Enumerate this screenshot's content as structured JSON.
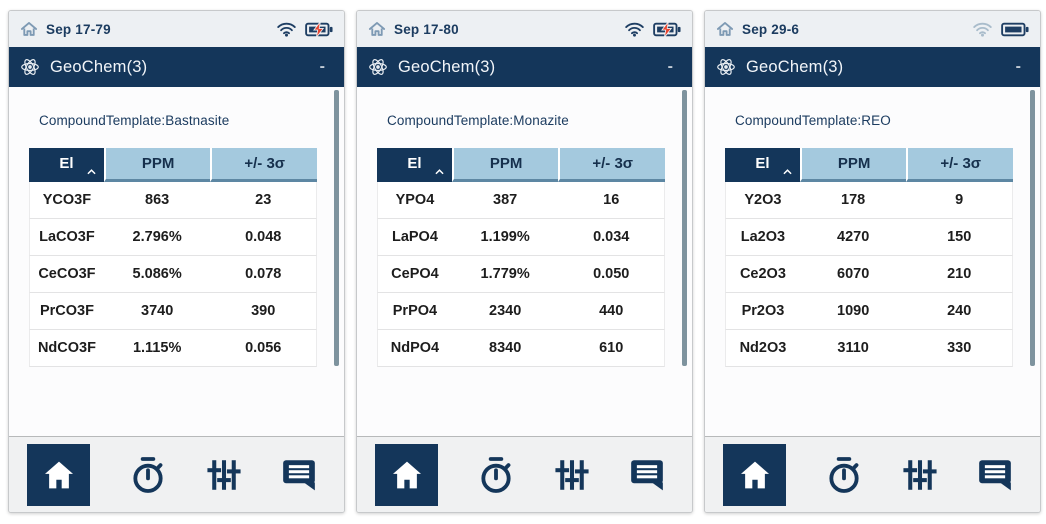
{
  "app": {
    "title": "GeoChem(3)",
    "minimize_label": "-"
  },
  "table_headers": {
    "el": "El",
    "ppm": "PPM",
    "sigma": "+/- 3σ"
  },
  "colors": {
    "header_navy": "#14365a",
    "table_header_blue": "#a4c9de",
    "charging_bolt_red": "#e8432e",
    "wifi_active": "#1e3e63",
    "wifi_faded": "#a9bccb"
  },
  "panels": [
    {
      "status": {
        "date": "Sep 17-79",
        "charging": true,
        "wifi_color": "#1e3e63"
      },
      "template_label": "CompoundTemplate:Bastnasite",
      "rows": [
        [
          "YCO3F",
          "863",
          "23"
        ],
        [
          "LaCO3F",
          "2.796%",
          "0.048"
        ],
        [
          "CeCO3F",
          "5.086%",
          "0.078"
        ],
        [
          "PrCO3F",
          "3740",
          "390"
        ],
        [
          "NdCO3F",
          "1.115%",
          "0.056"
        ]
      ]
    },
    {
      "status": {
        "date": "Sep 17-80",
        "charging": true,
        "wifi_color": "#1e3e63"
      },
      "template_label": "CompoundTemplate:Monazite",
      "rows": [
        [
          "YPO4",
          "387",
          "16"
        ],
        [
          "LaPO4",
          "1.199%",
          "0.034"
        ],
        [
          "CePO4",
          "1.779%",
          "0.050"
        ],
        [
          "PrPO4",
          "2340",
          "440"
        ],
        [
          "NdPO4",
          "8340",
          "610"
        ]
      ]
    },
    {
      "status": {
        "date": "Sep 29-6",
        "charging": false,
        "wifi_color": "#a9bccb"
      },
      "template_label": "CompoundTemplate:REO",
      "rows": [
        [
          "Y2O3",
          "178",
          "9"
        ],
        [
          "La2O3",
          "4270",
          "150"
        ],
        [
          "Ce2O3",
          "6070",
          "210"
        ],
        [
          "Pr2O3",
          "1090",
          "240"
        ],
        [
          "Nd2O3",
          "3110",
          "330"
        ]
      ]
    }
  ]
}
